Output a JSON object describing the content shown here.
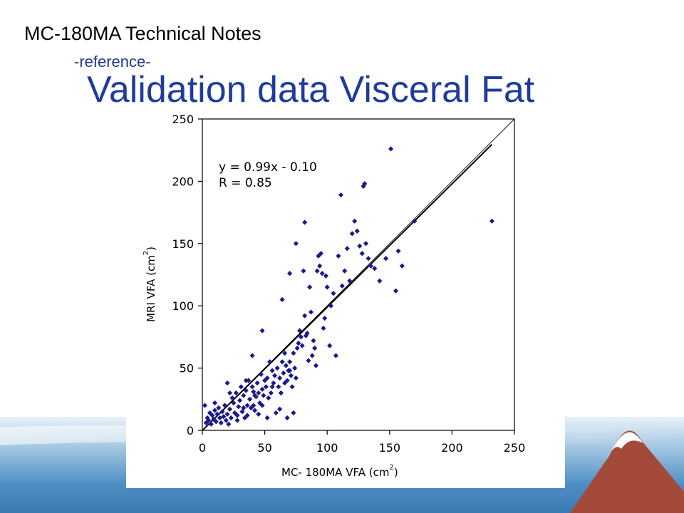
{
  "header": {
    "title": "MC-180MA  Technical Notes",
    "subtitle": "-reference-"
  },
  "slide": {
    "title": "Validation data Visceral Fat"
  },
  "colors": {
    "title_blue": "#1f3c9c",
    "marker": "#1a1a8c",
    "band_blue": "#4f8fc4",
    "band_light": "#c8dced",
    "mountain": "#a34a3a"
  },
  "chart_data": {
    "type": "scatter",
    "xlabel": "MC- 180MA VFA (cm",
    "xlabel_sup": "2",
    "xlabel_close": ")",
    "ylabel": "MRI VFA (cm",
    "ylabel_sup": "2",
    "ylabel_close": ")",
    "xlim": [
      0,
      250
    ],
    "ylim": [
      0,
      250
    ],
    "xticks": [
      "0",
      "50",
      "100",
      "150",
      "200",
      "250"
    ],
    "yticks": [
      "0",
      "50",
      "100",
      "150",
      "200",
      "250"
    ],
    "annotation": {
      "equation": "y = 0.99x -  0.10",
      "r_value": "R = 0.85"
    },
    "regression": {
      "slope": 0.99,
      "intercept": -0.1,
      "x_range": [
        0,
        232
      ]
    },
    "identity_line": {
      "x_range": [
        0,
        250
      ]
    },
    "grid": false,
    "legend": "none",
    "points": [
      [
        2,
        20
      ],
      [
        3,
        6
      ],
      [
        4,
        10
      ],
      [
        5,
        8
      ],
      [
        6,
        14
      ],
      [
        7,
        5
      ],
      [
        8,
        12
      ],
      [
        9,
        9
      ],
      [
        10,
        16
      ],
      [
        10,
        22
      ],
      [
        11,
        7
      ],
      [
        12,
        13
      ],
      [
        13,
        18
      ],
      [
        14,
        10
      ],
      [
        15,
        6
      ],
      [
        16,
        15
      ],
      [
        17,
        11
      ],
      [
        18,
        20
      ],
      [
        19,
        8
      ],
      [
        20,
        13
      ],
      [
        21,
        5
      ],
      [
        22,
        17
      ],
      [
        23,
        10
      ],
      [
        24,
        26
      ],
      [
        25,
        22
      ],
      [
        26,
        14
      ],
      [
        27,
        30
      ],
      [
        28,
        8
      ],
      [
        29,
        19
      ],
      [
        30,
        24
      ],
      [
        31,
        35
      ],
      [
        32,
        15
      ],
      [
        33,
        28
      ],
      [
        34,
        10
      ],
      [
        35,
        32
      ],
      [
        36,
        20
      ],
      [
        37,
        40
      ],
      [
        38,
        25
      ],
      [
        39,
        18
      ],
      [
        40,
        35
      ],
      [
        41,
        31
      ],
      [
        42,
        16
      ],
      [
        43,
        27
      ],
      [
        44,
        38
      ],
      [
        45,
        30
      ],
      [
        46,
        22
      ],
      [
        47,
        45
      ],
      [
        48,
        33
      ],
      [
        49,
        28
      ],
      [
        50,
        40
      ],
      [
        51,
        35
      ],
      [
        52,
        42
      ],
      [
        53,
        26
      ],
      [
        54,
        55
      ],
      [
        55,
        30
      ],
      [
        56,
        48
      ],
      [
        57,
        38
      ],
      [
        58,
        44
      ],
      [
        59,
        14
      ],
      [
        60,
        50
      ],
      [
        61,
        35
      ],
      [
        62,
        42
      ],
      [
        63,
        30
      ],
      [
        64,
        55
      ],
      [
        65,
        46
      ],
      [
        66,
        38
      ],
      [
        67,
        52
      ],
      [
        68,
        40
      ],
      [
        69,
        48
      ],
      [
        70,
        55
      ],
      [
        71,
        44
      ],
      [
        72,
        35
      ],
      [
        73,
        62
      ],
      [
        74,
        50
      ],
      [
        75,
        42
      ],
      [
        76,
        66
      ],
      [
        77,
        70
      ],
      [
        78,
        80
      ],
      [
        79,
        75
      ],
      [
        80,
        68
      ],
      [
        81,
        128
      ],
      [
        82,
        92
      ],
      [
        83,
        76
      ],
      [
        84,
        78
      ],
      [
        85,
        56
      ],
      [
        86,
        115
      ],
      [
        87,
        95
      ],
      [
        88,
        60
      ],
      [
        89,
        72
      ],
      [
        90,
        66
      ],
      [
        91,
        52
      ],
      [
        92,
        128
      ],
      [
        93,
        140
      ],
      [
        94,
        132
      ],
      [
        95,
        142
      ],
      [
        96,
        126
      ],
      [
        97,
        82
      ],
      [
        98,
        90
      ],
      [
        99,
        124
      ],
      [
        100,
        115
      ],
      [
        102,
        68
      ],
      [
        103,
        100
      ],
      [
        105,
        110
      ],
      [
        107,
        60
      ],
      [
        109,
        140
      ],
      [
        111,
        189
      ],
      [
        112,
        116
      ],
      [
        114,
        128
      ],
      [
        116,
        146
      ],
      [
        118,
        120
      ],
      [
        120,
        158
      ],
      [
        122,
        168
      ],
      [
        124,
        160
      ],
      [
        126,
        148
      ],
      [
        128,
        142
      ],
      [
        129,
        196
      ],
      [
        130,
        198
      ],
      [
        131,
        150
      ],
      [
        133,
        138
      ],
      [
        135,
        132
      ],
      [
        138,
        130
      ],
      [
        142,
        120
      ],
      [
        147,
        138
      ],
      [
        151,
        226
      ],
      [
        155,
        112
      ],
      [
        157,
        144
      ],
      [
        160,
        132
      ],
      [
        170,
        168
      ],
      [
        232,
        168
      ],
      [
        20,
        38
      ],
      [
        22,
        30
      ],
      [
        25,
        22
      ],
      [
        28,
        12
      ],
      [
        33,
        18
      ],
      [
        36,
        12
      ],
      [
        41,
        20
      ],
      [
        45,
        13
      ],
      [
        52,
        10
      ],
      [
        62,
        17
      ],
      [
        68,
        10
      ],
      [
        35,
        40
      ],
      [
        42,
        28
      ],
      [
        48,
        20
      ],
      [
        56,
        35
      ],
      [
        63,
        30
      ],
      [
        66,
        62
      ],
      [
        70,
        48
      ],
      [
        40,
        60
      ],
      [
        48,
        80
      ],
      [
        64,
        105
      ],
      [
        70,
        126
      ],
      [
        75,
        150
      ],
      [
        82,
        167
      ],
      [
        73,
        14
      ]
    ]
  }
}
